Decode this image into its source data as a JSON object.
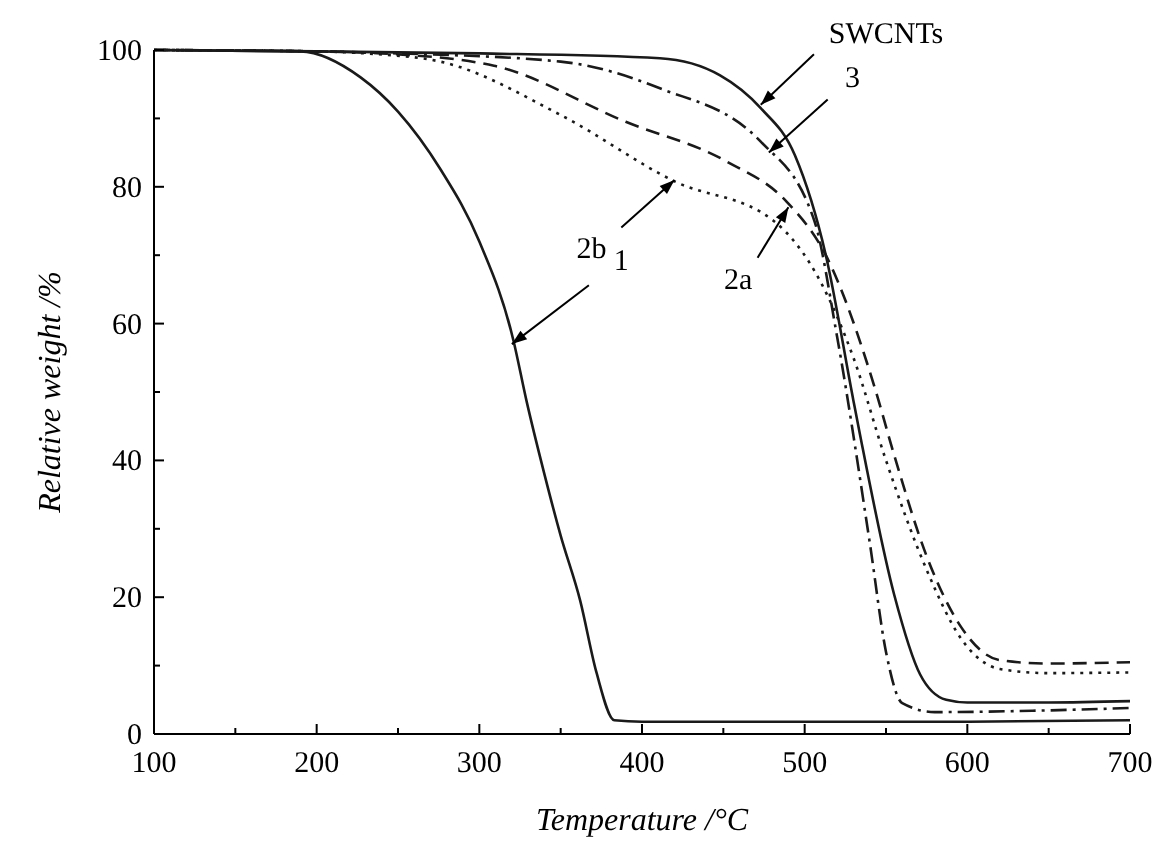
{
  "chart_data": {
    "type": "line",
    "xlabel": "Temperature /°C",
    "ylabel": "Relative weight /%",
    "xlim": [
      100,
      700
    ],
    "ylim": [
      0,
      100
    ],
    "xticks": [
      100,
      {
        "value": 150,
        "label": null
      },
      200,
      {
        "value": 250,
        "label": null
      },
      300,
      {
        "value": 350,
        "label": null
      },
      400,
      {
        "value": 450,
        "label": null
      },
      500,
      {
        "value": 550,
        "label": null
      },
      600,
      {
        "value": 650,
        "label": null
      },
      700
    ],
    "yticks": [
      0,
      {
        "value": 10,
        "label": null
      },
      20,
      {
        "value": 30,
        "label": null
      },
      40,
      {
        "value": 50,
        "label": null
      },
      60,
      {
        "value": 70,
        "label": null
      },
      80,
      {
        "value": 90,
        "label": null
      },
      100
    ],
    "grid": false,
    "series": [
      {
        "color": "#1a1a1a",
        "line_style": "solid",
        "x": [
          100,
          190,
          227,
          250,
          276,
          300,
          321,
          329,
          340,
          350,
          362,
          372,
          383,
          400,
          500,
          600,
          700
        ],
        "values": [
          100,
          99.8,
          96,
          91,
          82.6,
          72,
          57.5,
          48.7,
          38,
          29,
          19.5,
          9,
          2,
          1.8,
          1.8,
          1.8,
          2
        ]
      },
      {
        "color": "#1a1a1a",
        "line_style": "solid",
        "x": [
          100,
          200,
          300,
          411,
          448,
          473,
          494,
          513,
          530,
          534,
          555,
          571,
          587,
          600,
          650,
          700
        ],
        "values": [
          100,
          99.8,
          99.5,
          98.8,
          96.3,
          91.5,
          84.6,
          70,
          48.7,
          43.8,
          20.4,
          8.7,
          5,
          4.6,
          4.6,
          4.8
        ]
      },
      {
        "color": "#1a1a1a",
        "line_style": "dashdot",
        "x": [
          100,
          200,
          250,
          350,
          411,
          473,
          506,
          520,
          540,
          550,
          560,
          580,
          640,
          700
        ],
        "values": [
          100,
          99.8,
          99.5,
          98.3,
          94.4,
          86.6,
          75,
          58,
          28,
          12,
          4.5,
          3.2,
          3.4,
          3.8
        ]
      },
      {
        "color": "#1a1a1a",
        "line_style": "dashed",
        "x": [
          100,
          200,
          240,
          309,
          390,
          452,
          489,
          513,
          543,
          555,
          575,
          596,
          620,
          650,
          700
        ],
        "values": [
          100,
          99.8,
          99.5,
          97.7,
          89.5,
          83.7,
          77.8,
          70,
          50.7,
          40.8,
          26,
          15.7,
          10.8,
          10.3,
          10.5
        ]
      },
      {
        "color": "#1a1a1a",
        "line_style": "dotted",
        "x": [
          100,
          200,
          230,
          276,
          350,
          420,
          481,
          510,
          530,
          550,
          575,
          596,
          620,
          650,
          700
        ],
        "values": [
          100,
          99.8,
          99.5,
          98.3,
          90.5,
          80.8,
          75,
          66,
          55,
          40,
          24,
          14,
          9.5,
          8.9,
          9
        ]
      }
    ],
    "annotations": [
      {
        "text": "1",
        "x": 320,
        "y": 57
      },
      {
        "text": "SWCNTs",
        "x": 473,
        "y": 92
      },
      {
        "text": "3",
        "x": 478,
        "y": 85
      },
      {
        "text": "2b",
        "x": 420,
        "y": 81
      },
      {
        "text": "2a",
        "x": 490,
        "y": 77
      }
    ]
  }
}
